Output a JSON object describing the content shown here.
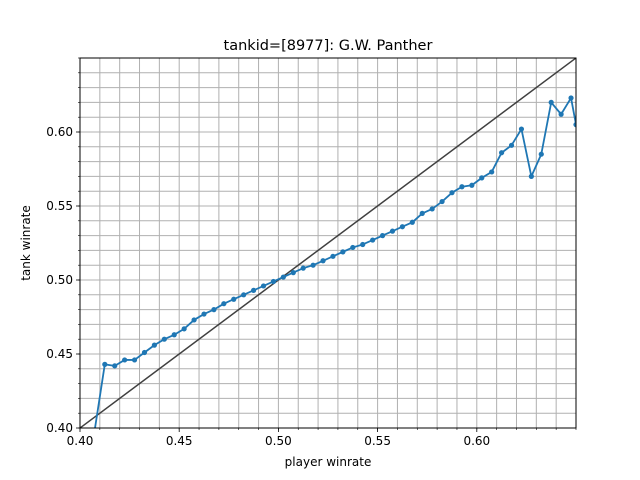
{
  "chart_data": {
    "type": "line",
    "title": "tankid=[8977]: G.W. Panther",
    "xlabel": "player winrate",
    "ylabel": "tank winrate",
    "xlim": [
      0.4,
      0.65
    ],
    "ylim": [
      0.4,
      0.65
    ],
    "x_ticks": [
      "0.40",
      "0.45",
      "0.50",
      "0.55",
      "0.60"
    ],
    "x_tick_values": [
      0.4,
      0.45,
      0.5,
      0.55,
      0.6
    ],
    "y_ticks": [
      "0.40",
      "0.45",
      "0.50",
      "0.55",
      "0.60"
    ],
    "y_tick_values": [
      0.4,
      0.45,
      0.5,
      0.55,
      0.6
    ],
    "grid": true,
    "minor_grid": true,
    "minor_step": 0.01,
    "series": [
      {
        "color": "#1f77b4",
        "marker": "circle",
        "x": [
          0.407,
          0.4125,
          0.4175,
          0.4225,
          0.4275,
          0.4325,
          0.4375,
          0.4425,
          0.4475,
          0.4525,
          0.4575,
          0.4625,
          0.4675,
          0.4725,
          0.4775,
          0.4825,
          0.4875,
          0.4925,
          0.4975,
          0.5025,
          0.5075,
          0.5125,
          0.5175,
          0.5225,
          0.5275,
          0.5325,
          0.5375,
          0.5425,
          0.5475,
          0.5525,
          0.5575,
          0.5625,
          0.5675,
          0.5725,
          0.5775,
          0.5825,
          0.5875,
          0.5925,
          0.5975,
          0.6025,
          0.6075,
          0.6125,
          0.6175,
          0.6225,
          0.6275,
          0.6325,
          0.6375,
          0.6425,
          0.6475,
          0.65
        ],
        "y": [
          0.395,
          0.443,
          0.442,
          0.446,
          0.446,
          0.451,
          0.456,
          0.46,
          0.463,
          0.467,
          0.473,
          0.477,
          0.48,
          0.484,
          0.487,
          0.49,
          0.493,
          0.496,
          0.499,
          0.502,
          0.505,
          0.508,
          0.51,
          0.513,
          0.516,
          0.519,
          0.522,
          0.524,
          0.527,
          0.53,
          0.533,
          0.536,
          0.539,
          0.545,
          0.548,
          0.553,
          0.559,
          0.563,
          0.564,
          0.569,
          0.573,
          0.586,
          0.591,
          0.602,
          0.57,
          0.585,
          0.62,
          0.612,
          0.623,
          0.605
        ]
      },
      {
        "color": "#404040",
        "marker": "none",
        "x": [
          0.4,
          0.65
        ],
        "y": [
          0.4,
          0.65
        ]
      }
    ]
  }
}
